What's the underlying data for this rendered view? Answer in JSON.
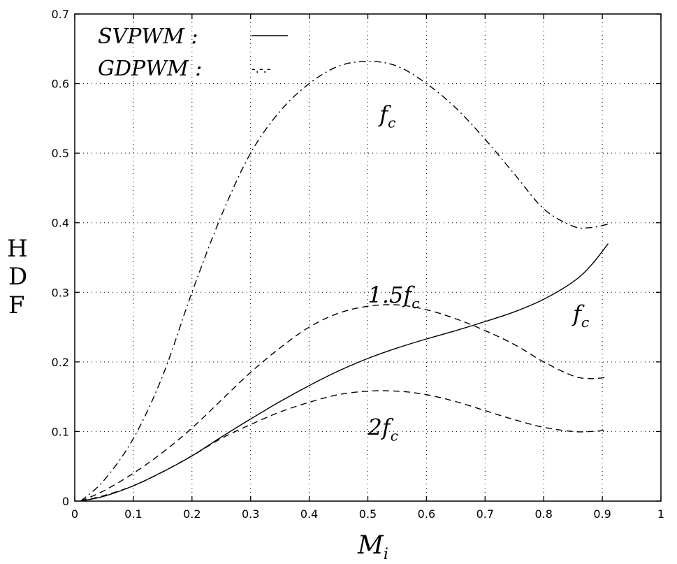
{
  "chart_data": {
    "type": "line",
    "title": "",
    "xlabel": {
      "main": "M",
      "sub": "i"
    },
    "ylabel": [
      "H",
      "D",
      "F"
    ],
    "xlim": [
      0,
      1
    ],
    "ylim": [
      0,
      0.7
    ],
    "xticks": [
      "0",
      "0.1",
      "0.2",
      "0.3",
      "0.4",
      "0.5",
      "0.6",
      "0.7",
      "0.8",
      "0.9",
      "1"
    ],
    "yticks": [
      "0",
      "0.1",
      "0.2",
      "0.3",
      "0.4",
      "0.5",
      "0.6",
      "0.7"
    ],
    "grid": true,
    "legend": {
      "placement": "top-left",
      "entries": [
        {
          "label": "SVPWM :",
          "style": "solid"
        },
        {
          "label": "GDPWM :",
          "sample_text": "-.-.-",
          "style": "dash-dot"
        }
      ]
    },
    "series": [
      {
        "style": "dash-dot",
        "label_main": "f",
        "label_sub": "c",
        "x": [
          0.01,
          0.05,
          0.1,
          0.15,
          0.2,
          0.25,
          0.3,
          0.35,
          0.4,
          0.45,
          0.5,
          0.55,
          0.6,
          0.65,
          0.7,
          0.75,
          0.8,
          0.85,
          0.88,
          0.91
        ],
        "y": [
          0.0,
          0.03,
          0.09,
          0.18,
          0.3,
          0.41,
          0.5,
          0.56,
          0.6,
          0.625,
          0.632,
          0.625,
          0.6,
          0.565,
          0.52,
          0.47,
          0.42,
          0.395,
          0.393,
          0.398
        ]
      },
      {
        "style": "dashed",
        "label_main": "1.5f",
        "label_sub": "c",
        "x": [
          0.01,
          0.05,
          0.1,
          0.15,
          0.2,
          0.25,
          0.3,
          0.35,
          0.4,
          0.45,
          0.5,
          0.55,
          0.6,
          0.65,
          0.7,
          0.75,
          0.8,
          0.85,
          0.88,
          0.91
        ],
        "y": [
          0.0,
          0.015,
          0.04,
          0.07,
          0.105,
          0.145,
          0.185,
          0.22,
          0.25,
          0.27,
          0.28,
          0.282,
          0.275,
          0.262,
          0.245,
          0.225,
          0.2,
          0.18,
          0.176,
          0.178
        ]
      },
      {
        "style": "dashed",
        "label_main": "2f",
        "label_sub": "c",
        "x": [
          0.01,
          0.05,
          0.1,
          0.15,
          0.2,
          0.25,
          0.3,
          0.35,
          0.4,
          0.45,
          0.5,
          0.55,
          0.6,
          0.65,
          0.7,
          0.75,
          0.8,
          0.85,
          0.88,
          0.91
        ],
        "y": [
          0.0,
          0.008,
          0.022,
          0.042,
          0.065,
          0.09,
          0.11,
          0.128,
          0.142,
          0.153,
          0.158,
          0.158,
          0.153,
          0.143,
          0.13,
          0.117,
          0.106,
          0.1,
          0.1,
          0.102
        ]
      },
      {
        "style": "solid",
        "label_main": "f",
        "label_sub": "c",
        "x": [
          0.01,
          0.05,
          0.1,
          0.15,
          0.2,
          0.25,
          0.3,
          0.35,
          0.4,
          0.45,
          0.5,
          0.55,
          0.6,
          0.65,
          0.7,
          0.75,
          0.8,
          0.85,
          0.88,
          0.91
        ],
        "y": [
          0.0,
          0.007,
          0.022,
          0.042,
          0.065,
          0.092,
          0.118,
          0.143,
          0.166,
          0.187,
          0.205,
          0.22,
          0.233,
          0.245,
          0.258,
          0.272,
          0.29,
          0.315,
          0.338,
          0.37
        ]
      }
    ]
  }
}
